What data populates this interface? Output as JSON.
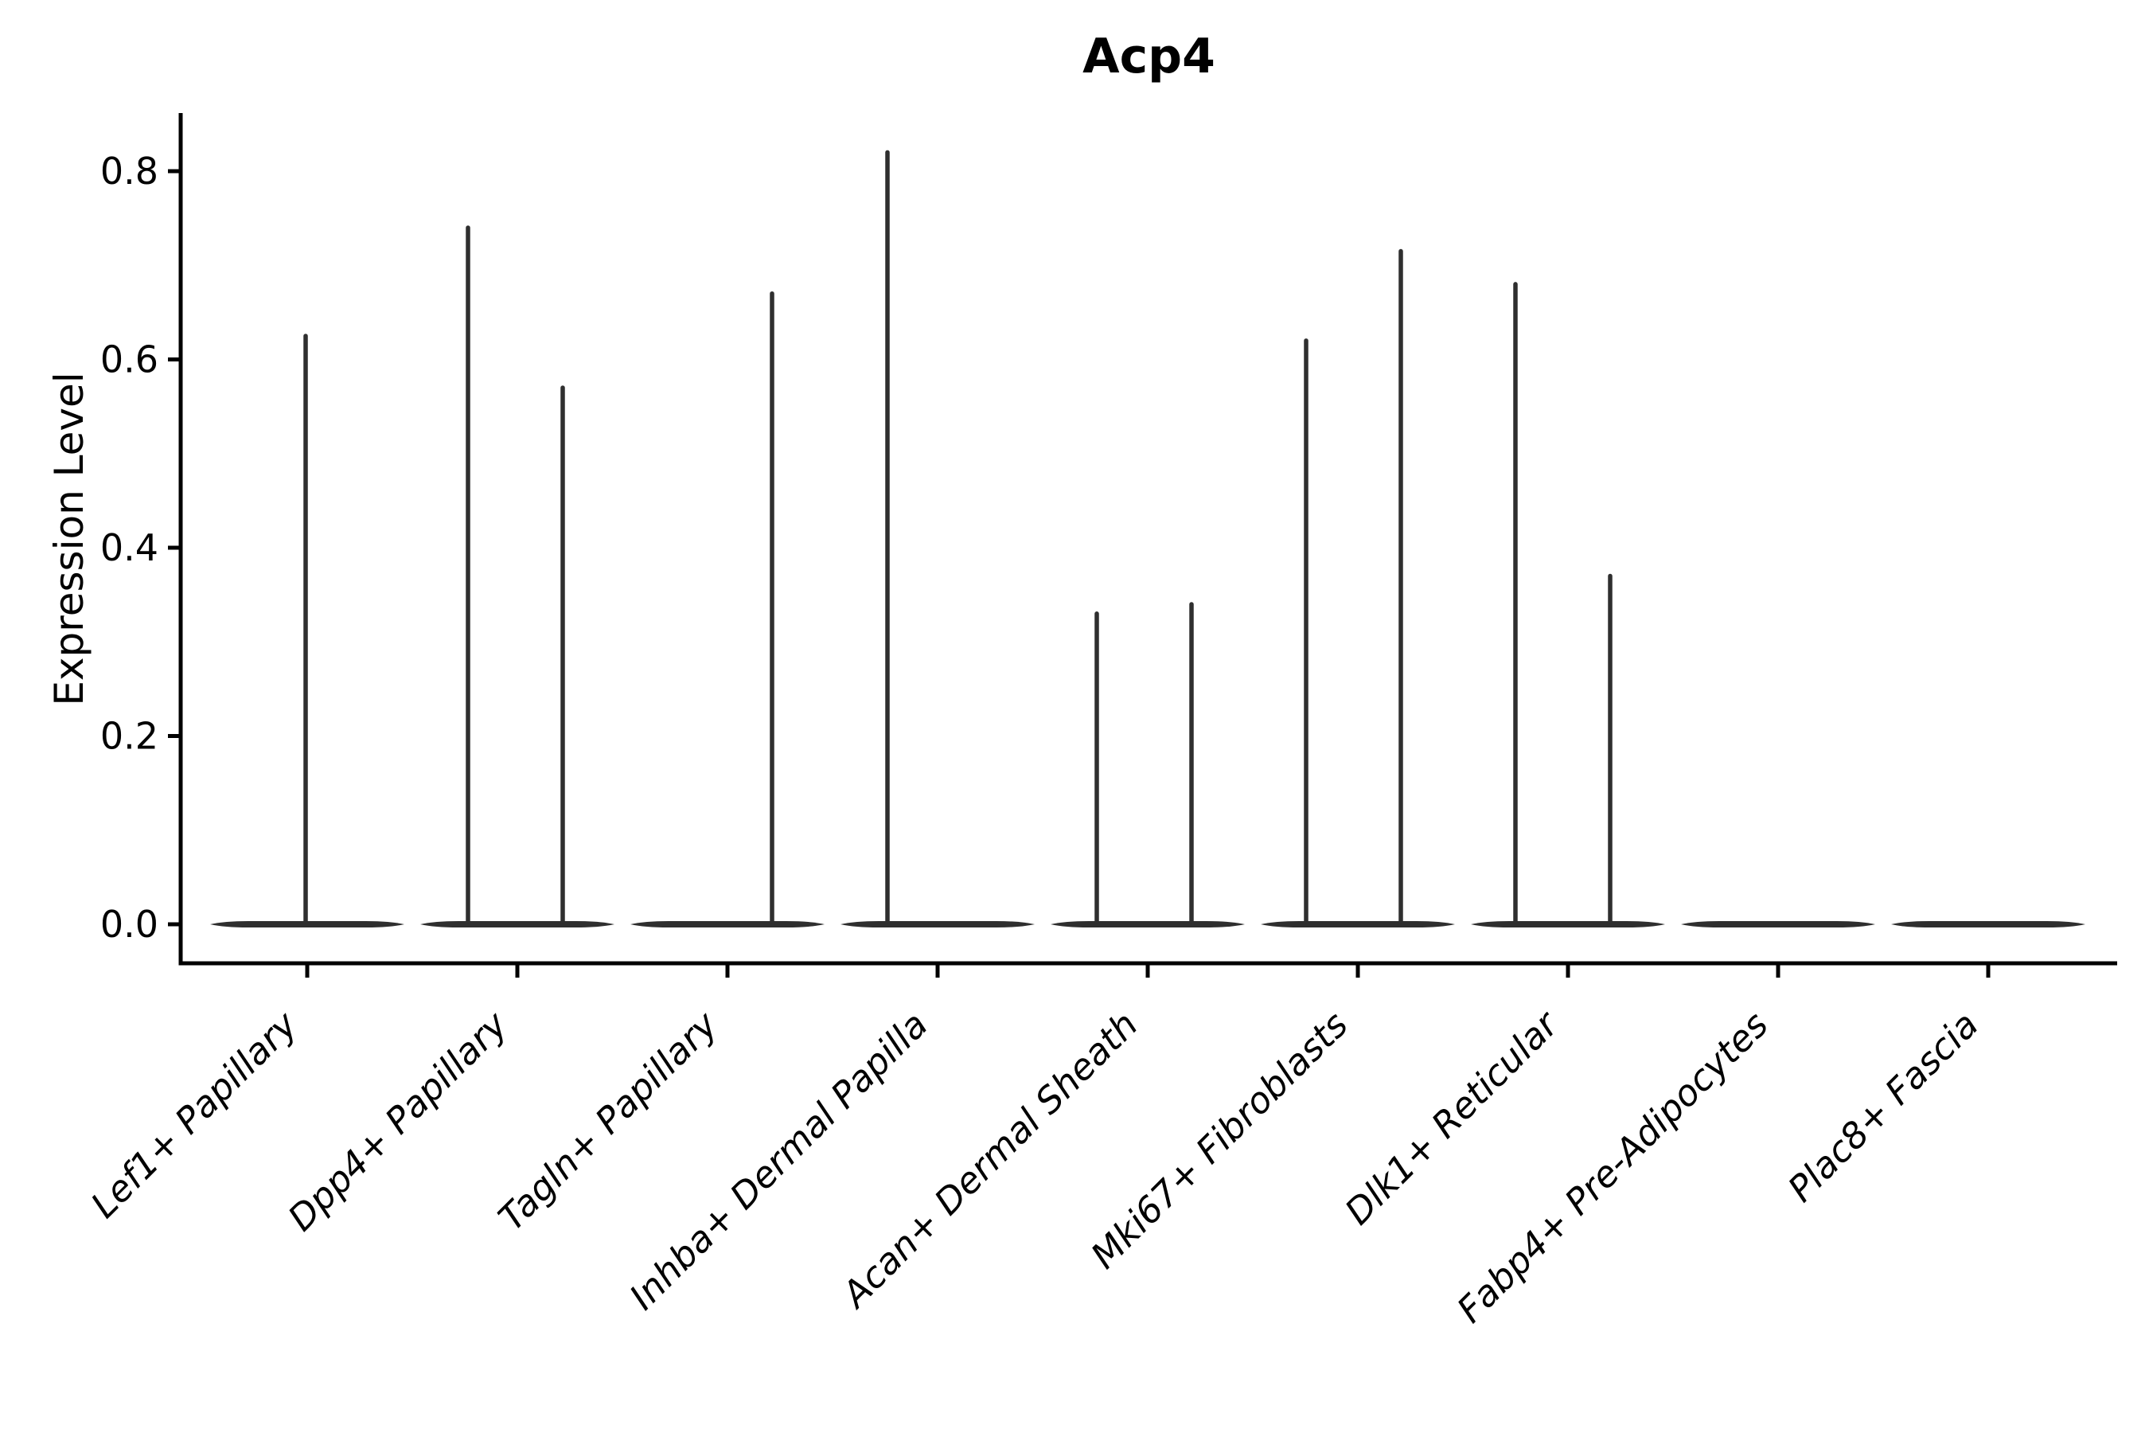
{
  "title": "Acp4",
  "y_axis": {
    "label": "Expression Level",
    "tick_labels": [
      "0.0",
      "0.2",
      "0.4",
      "0.6",
      "0.8"
    ],
    "tick_values": [
      0.0,
      0.2,
      0.4,
      0.6,
      0.8
    ]
  },
  "chart_data": {
    "type": "violin",
    "title": "Acp4",
    "xlabel": "",
    "ylabel": "Expression Level",
    "ylim": [
      -0.041,
      0.862
    ],
    "grid": false,
    "legend": "none",
    "categories": [
      "Lef1+ Papillary",
      "Dpp4+ Papillary",
      "Tagln+ Papillary",
      "Inhba+ Dermal Papilla",
      "Acan+ Dermal Sheath",
      "Mki67+ Fibroblasts",
      "Dlk1+ Reticular",
      "Fabp4+ Pre-Adipocytes",
      "Plac8+ Fascia"
    ],
    "series": [
      {
        "name": "Lef1+ Papillary",
        "base_at_zero": true,
        "spikes": [
          {
            "dx": -2,
            "value": 0.625
          }
        ]
      },
      {
        "name": "Dpp4+ Papillary",
        "base_at_zero": true,
        "spikes": [
          {
            "dx": -62,
            "value": 0.74
          },
          {
            "dx": 57,
            "value": 0.57
          }
        ]
      },
      {
        "name": "Tagln+ Papillary",
        "base_at_zero": true,
        "spikes": [
          {
            "dx": 56,
            "value": 0.67
          }
        ]
      },
      {
        "name": "Inhba+ Dermal Papilla",
        "base_at_zero": true,
        "spikes": [
          {
            "dx": -63,
            "value": 0.82
          }
        ]
      },
      {
        "name": "Acan+ Dermal Sheath",
        "base_at_zero": true,
        "spikes": [
          {
            "dx": -64,
            "value": 0.33
          },
          {
            "dx": 55,
            "value": 0.34
          }
        ]
      },
      {
        "name": "Mki67+ Fibroblasts",
        "base_at_zero": true,
        "spikes": [
          {
            "dx": -65,
            "value": 0.62
          },
          {
            "dx": 54,
            "value": 0.715
          }
        ]
      },
      {
        "name": "Dlk1+ Reticular",
        "base_at_zero": true,
        "spikes": [
          {
            "dx": -66,
            "value": 0.68
          },
          {
            "dx": 53,
            "value": 0.37
          }
        ]
      },
      {
        "name": "Fabp4+ Pre-Adipocytes",
        "base_at_zero": true,
        "spikes": []
      },
      {
        "name": "Plac8+ Fascia",
        "base_at_zero": true,
        "spikes": []
      }
    ]
  },
  "style": {
    "axis_color": "#000000",
    "violin_color": "#2f2f2f",
    "background": "#ffffff"
  }
}
